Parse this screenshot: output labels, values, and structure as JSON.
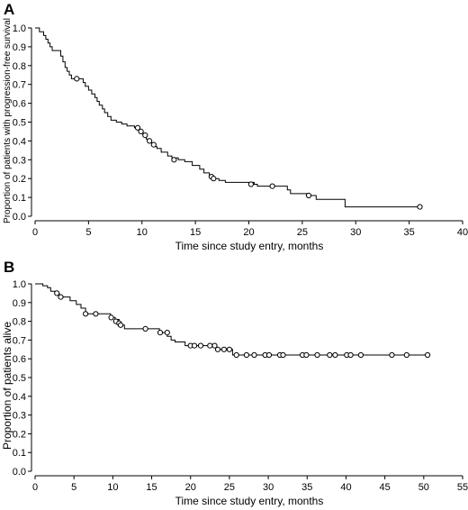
{
  "chart_data": [
    {
      "type": "line",
      "panel_label": "A",
      "xlabel": "Time since study entry, months",
      "ylabel": "Proportion of patients with progression-free survival",
      "xlim": [
        0,
        40
      ],
      "ylim": [
        0,
        1.0
      ],
      "xticks": [
        0,
        5,
        10,
        15,
        20,
        25,
        30,
        35,
        40
      ],
      "yticks": [
        0,
        0.1,
        0.2,
        0.3,
        0.4,
        0.5,
        0.6,
        0.7,
        0.8,
        0.9,
        1.0
      ],
      "ytick_labels": [
        "0.0",
        "0.1",
        "0.2",
        "0.3",
        "0.4",
        "0.5",
        "0.6",
        "0.7",
        "0.8",
        "0.9",
        "1.0"
      ],
      "grid": false,
      "step": [
        [
          0,
          1.0
        ],
        [
          0.4,
          0.98
        ],
        [
          0.8,
          0.96
        ],
        [
          1.0,
          0.94
        ],
        [
          1.2,
          0.92
        ],
        [
          1.4,
          0.9
        ],
        [
          1.6,
          0.88
        ],
        [
          2.4,
          0.85
        ],
        [
          2.6,
          0.82
        ],
        [
          2.8,
          0.79
        ],
        [
          3.0,
          0.77
        ],
        [
          3.2,
          0.75
        ],
        [
          3.4,
          0.73
        ],
        [
          4.5,
          0.71
        ],
        [
          4.7,
          0.69
        ],
        [
          5.0,
          0.67
        ],
        [
          5.3,
          0.65
        ],
        [
          5.6,
          0.63
        ],
        [
          5.8,
          0.61
        ],
        [
          6.0,
          0.59
        ],
        [
          6.3,
          0.57
        ],
        [
          6.5,
          0.55
        ],
        [
          6.8,
          0.53
        ],
        [
          7.1,
          0.51
        ],
        [
          7.6,
          0.5
        ],
        [
          8.1,
          0.49
        ],
        [
          8.6,
          0.48
        ],
        [
          9.3,
          0.47
        ],
        [
          9.8,
          0.45
        ],
        [
          10.1,
          0.43
        ],
        [
          10.4,
          0.41
        ],
        [
          10.8,
          0.39
        ],
        [
          11.1,
          0.37
        ],
        [
          11.4,
          0.36
        ],
        [
          11.8,
          0.34
        ],
        [
          12.4,
          0.32
        ],
        [
          12.8,
          0.31
        ],
        [
          13.4,
          0.3
        ],
        [
          14.0,
          0.29
        ],
        [
          14.7,
          0.27
        ],
        [
          15.4,
          0.25
        ],
        [
          15.8,
          0.23
        ],
        [
          16.3,
          0.21
        ],
        [
          16.7,
          0.2
        ],
        [
          17.2,
          0.19
        ],
        [
          17.8,
          0.18
        ],
        [
          20.5,
          0.17
        ],
        [
          20.8,
          0.16
        ],
        [
          23.6,
          0.14
        ],
        [
          23.9,
          0.12
        ],
        [
          25.6,
          0.11
        ],
        [
          26.3,
          0.09
        ],
        [
          29.0,
          0.05
        ],
        [
          36.0,
          0.05
        ]
      ],
      "censored": [
        [
          3.9,
          0.73
        ],
        [
          9.6,
          0.47
        ],
        [
          9.9,
          0.45
        ],
        [
          10.3,
          0.43
        ],
        [
          10.7,
          0.4
        ],
        [
          11.1,
          0.38
        ],
        [
          13.0,
          0.3
        ],
        [
          16.5,
          0.21
        ],
        [
          16.7,
          0.2
        ],
        [
          20.2,
          0.17
        ],
        [
          22.2,
          0.16
        ],
        [
          25.6,
          0.11
        ],
        [
          36.0,
          0.05
        ]
      ]
    },
    {
      "type": "line",
      "panel_label": "B",
      "xlabel": "Time since study entry, months",
      "ylabel": "Proportion of patients alive",
      "xlim": [
        0,
        55
      ],
      "ylim": [
        0,
        1.0
      ],
      "xticks": [
        0,
        5,
        10,
        15,
        20,
        25,
        30,
        35,
        40,
        45,
        50,
        55
      ],
      "yticks": [
        0,
        0.1,
        0.2,
        0.3,
        0.4,
        0.5,
        0.6,
        0.7,
        0.8,
        0.9,
        1.0
      ],
      "ytick_labels": [
        "0.0",
        "0.1",
        "0.2",
        "0.3",
        "0.4",
        "0.5",
        "0.6",
        "0.7",
        "0.8",
        "0.9",
        "1.0"
      ],
      "grid": false,
      "step": [
        [
          0,
          1.0
        ],
        [
          1.0,
          0.99
        ],
        [
          1.6,
          0.98
        ],
        [
          2.0,
          0.96
        ],
        [
          2.6,
          0.95
        ],
        [
          3.1,
          0.93
        ],
        [
          4.5,
          0.91
        ],
        [
          5.3,
          0.89
        ],
        [
          5.9,
          0.87
        ],
        [
          6.5,
          0.84
        ],
        [
          9.7,
          0.82
        ],
        [
          10.3,
          0.81
        ],
        [
          10.8,
          0.79
        ],
        [
          11.1,
          0.78
        ],
        [
          11.5,
          0.76
        ],
        [
          14.3,
          0.76
        ],
        [
          16.0,
          0.74
        ],
        [
          17.0,
          0.72
        ],
        [
          17.5,
          0.7
        ],
        [
          18.0,
          0.69
        ],
        [
          19.3,
          0.67
        ],
        [
          22.9,
          0.67
        ],
        [
          23.3,
          0.65
        ],
        [
          25.4,
          0.62
        ],
        [
          50.5,
          0.62
        ]
      ],
      "censored": [
        [
          2.8,
          0.95
        ],
        [
          3.3,
          0.93
        ],
        [
          6.5,
          0.84
        ],
        [
          7.8,
          0.84
        ],
        [
          9.8,
          0.82
        ],
        [
          10.4,
          0.8
        ],
        [
          10.8,
          0.79
        ],
        [
          11.0,
          0.78
        ],
        [
          14.2,
          0.76
        ],
        [
          16.1,
          0.74
        ],
        [
          17.0,
          0.74
        ],
        [
          20.0,
          0.67
        ],
        [
          20.5,
          0.67
        ],
        [
          21.3,
          0.67
        ],
        [
          22.5,
          0.67
        ],
        [
          23.1,
          0.67
        ],
        [
          23.5,
          0.65
        ],
        [
          24.3,
          0.65
        ],
        [
          25.0,
          0.65
        ],
        [
          25.9,
          0.62
        ],
        [
          27.2,
          0.62
        ],
        [
          28.2,
          0.62
        ],
        [
          29.6,
          0.62
        ],
        [
          30.1,
          0.62
        ],
        [
          31.5,
          0.62
        ],
        [
          31.9,
          0.62
        ],
        [
          34.4,
          0.62
        ],
        [
          34.9,
          0.62
        ],
        [
          36.3,
          0.62
        ],
        [
          37.9,
          0.62
        ],
        [
          38.6,
          0.62
        ],
        [
          40.1,
          0.62
        ],
        [
          40.6,
          0.62
        ],
        [
          41.9,
          0.62
        ],
        [
          45.9,
          0.62
        ],
        [
          47.8,
          0.62
        ],
        [
          50.5,
          0.62
        ]
      ]
    }
  ]
}
